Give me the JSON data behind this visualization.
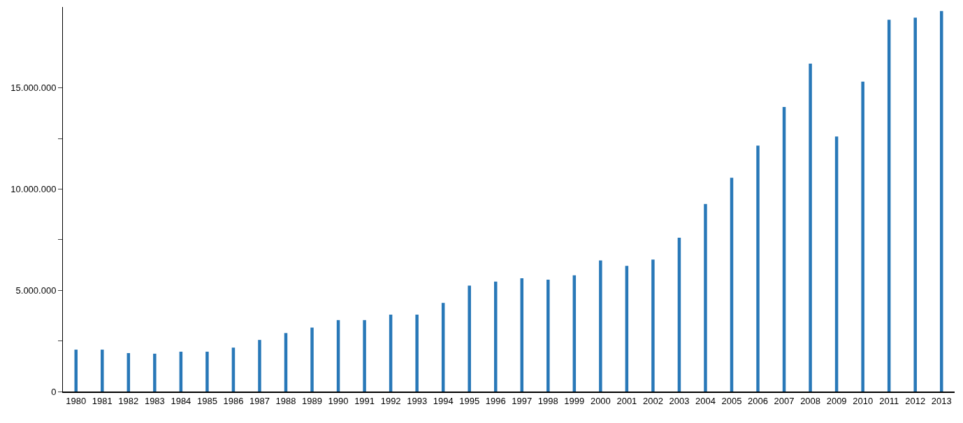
{
  "chart_data": {
    "type": "bar",
    "categories": [
      "1980",
      "1981",
      "1982",
      "1983",
      "1984",
      "1985",
      "1986",
      "1987",
      "1988",
      "1989",
      "1990",
      "1991",
      "1992",
      "1993",
      "1994",
      "1995",
      "1996",
      "1997",
      "1998",
      "1999",
      "2000",
      "2001",
      "2002",
      "2003",
      "2004",
      "2005",
      "2006",
      "2007",
      "2008",
      "2009",
      "2010",
      "2011",
      "2012",
      "2013"
    ],
    "values": [
      2070000,
      2070000,
      1900000,
      1870000,
      1970000,
      1970000,
      2170000,
      2550000,
      2890000,
      3160000,
      3530000,
      3530000,
      3800000,
      3800000,
      4380000,
      5230000,
      5430000,
      5600000,
      5530000,
      5740000,
      6480000,
      6210000,
      6520000,
      7600000,
      9270000,
      10560000,
      12150000,
      14060000,
      16200000,
      12600000,
      15310000,
      18370000,
      18470000,
      18800000
    ],
    "color": "#2878b8",
    "ylim": [
      0,
      19000000
    ],
    "yticks": [
      {
        "value": 0,
        "label": "0"
      },
      {
        "value": 2500000,
        "label": null
      },
      {
        "value": 5000000,
        "label": "5.000.000"
      },
      {
        "value": 7500000,
        "label": null
      },
      {
        "value": 10000000,
        "label": "10.000.000"
      },
      {
        "value": 12500000,
        "label": null
      },
      {
        "value": 15000000,
        "label": "15.000.000"
      }
    ],
    "grid": false,
    "legend": false
  }
}
